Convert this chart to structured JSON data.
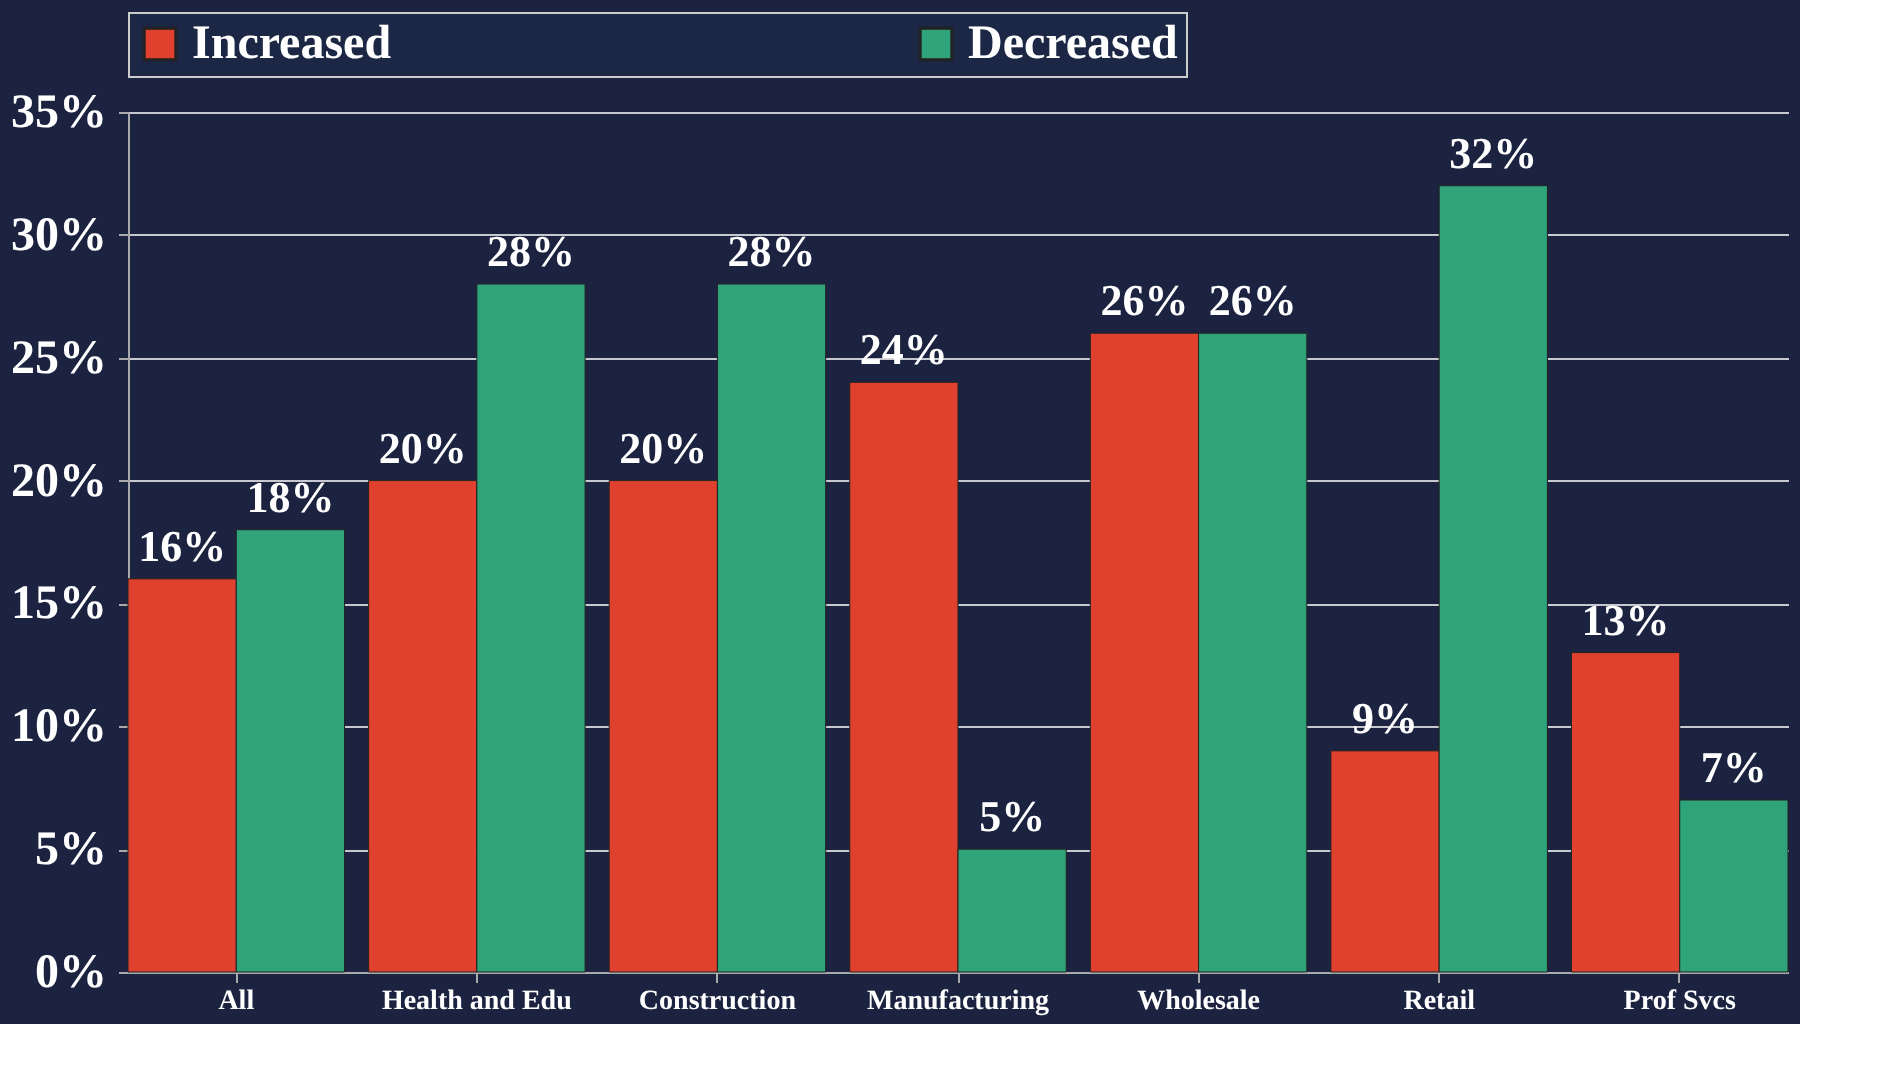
{
  "chart_data": {
    "type": "bar",
    "categories": [
      "All",
      "Health and Edu",
      "Construction",
      "Manufacturing",
      "Wholesale",
      "Retail",
      "Prof Svcs"
    ],
    "series": [
      {
        "name": "Increased",
        "color": "#e0412f",
        "values": [
          16,
          20,
          20,
          24,
          26,
          9,
          13
        ],
        "value_labels": [
          "16%",
          "20%",
          "20%",
          "24%",
          "26%",
          "9%",
          "13%"
        ]
      },
      {
        "name": "Decreased",
        "color": "#2fa37a",
        "values": [
          18,
          28,
          28,
          5,
          26,
          32,
          7
        ],
        "value_labels": [
          "18%",
          "28%",
          "28%",
          "5%",
          "26%",
          "32%",
          "7%"
        ]
      }
    ],
    "ylim": [
      0,
      35
    ],
    "yticks": [
      {
        "value": 0,
        "label": "0%"
      },
      {
        "value": 5,
        "label": "5%"
      },
      {
        "value": 10,
        "label": "10%"
      },
      {
        "value": 15,
        "label": "15%"
      },
      {
        "value": 20,
        "label": "20%"
      },
      {
        "value": 25,
        "label": "25%"
      },
      {
        "value": 30,
        "label": "30%"
      },
      {
        "value": 35,
        "label": "35%"
      }
    ],
    "grid": "y",
    "legend": "top"
  }
}
